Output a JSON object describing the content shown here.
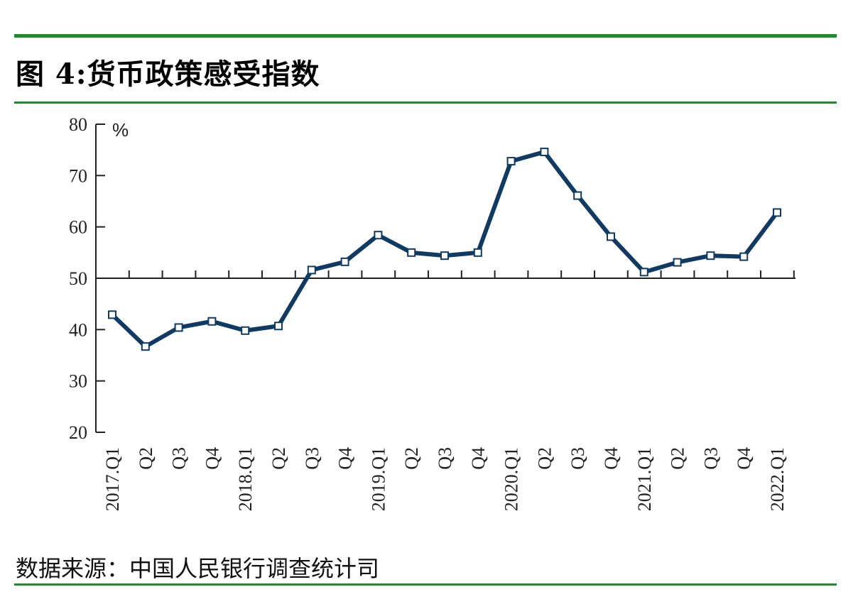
{
  "title": "图 4:货币政策感受指数",
  "source": "数据来源：中国人民银行调查统计司",
  "colors": {
    "rule": "#1f8a2e",
    "line": "#0f3a63",
    "axis": "#222222"
  },
  "chart_data": {
    "type": "line",
    "title": "图 4:货币政策感受指数",
    "xlabel": "",
    "ylabel": "%",
    "ylim": [
      20,
      80
    ],
    "yticks": [
      20,
      30,
      40,
      50,
      60,
      70,
      80
    ],
    "x_axis_crosses_at": 50,
    "grid": false,
    "categories": [
      "2017.Q1",
      "Q2",
      "Q3",
      "Q4",
      "2018.Q1",
      "Q2",
      "Q3",
      "Q4",
      "2019.Q1",
      "Q2",
      "Q3",
      "Q4",
      "2020.Q1",
      "Q2",
      "Q3",
      "Q4",
      "2021.Q1",
      "Q2",
      "Q3",
      "Q4",
      "2022.Q1"
    ],
    "series": [
      {
        "values": [
          42.9,
          36.7,
          40.4,
          41.6,
          39.8,
          40.7,
          51.6,
          53.2,
          58.4,
          55.0,
          54.4,
          55.0,
          72.8,
          74.6,
          66.1,
          58.1,
          51.2,
          53.1,
          54.4,
          54.2,
          62.8
        ]
      }
    ]
  }
}
